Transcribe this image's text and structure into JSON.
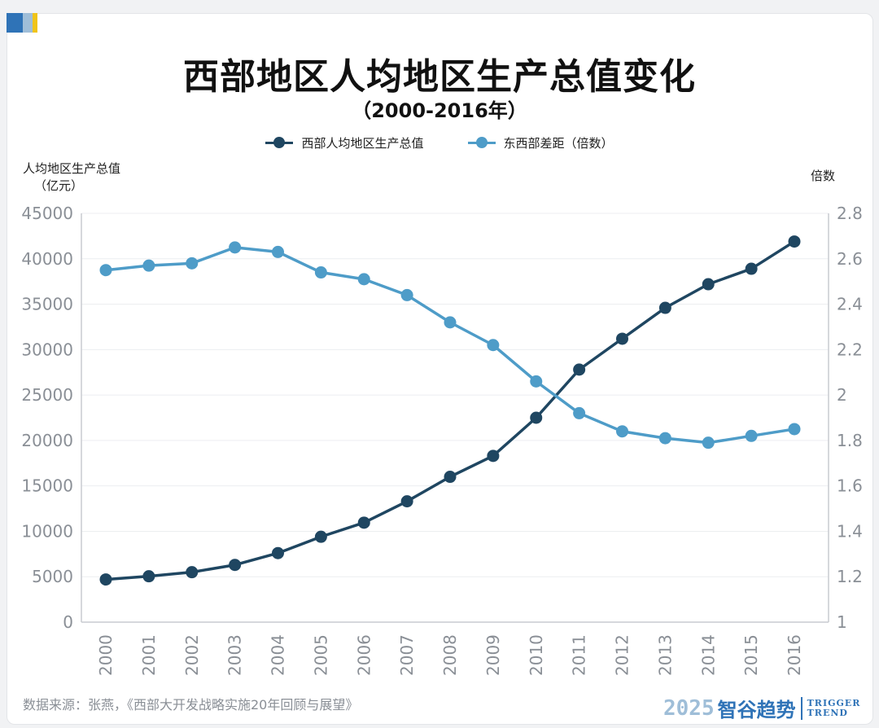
{
  "header": {
    "title": "西部地区人均地区生产总值变化",
    "subtitle": "（2000-2016年）"
  },
  "legend": {
    "items": [
      {
        "label": "西部人均地区生产总值",
        "color": "#1f4661"
      },
      {
        "label": "东西部差距（倍数）",
        "color": "#4e9cc8"
      }
    ]
  },
  "axes": {
    "left_label_line1": "人均地区生产总值",
    "left_label_line2": "（亿元）",
    "right_label": "倍数"
  },
  "chart_data": {
    "type": "line",
    "x": [
      "2000",
      "2001",
      "2002",
      "2003",
      "2004",
      "2005",
      "2006",
      "2007",
      "2008",
      "2009",
      "2010",
      "2011",
      "2012",
      "2013",
      "2014",
      "2015",
      "2016"
    ],
    "series": [
      {
        "name": "西部人均地区生产总值",
        "axis": "left",
        "color": "#1f4661",
        "values": [
          4700,
          5050,
          5500,
          6300,
          7600,
          9400,
          10950,
          13300,
          16000,
          18300,
          22500,
          27800,
          31200,
          34600,
          37200,
          38900,
          41900
        ]
      },
      {
        "name": "东西部差距（倍数）",
        "axis": "right",
        "color": "#4e9cc8",
        "values": [
          2.55,
          2.57,
          2.58,
          2.65,
          2.63,
          2.54,
          2.51,
          2.44,
          2.32,
          2.22,
          2.06,
          1.92,
          1.84,
          1.81,
          1.79,
          1.82,
          1.85
        ]
      }
    ],
    "y_left": {
      "ticks": [
        "0",
        "5000",
        "10000",
        "15000",
        "20000",
        "25000",
        "30000",
        "35000",
        "40000",
        "45000"
      ],
      "min": 0,
      "max": 45000
    },
    "y_right": {
      "ticks": [
        "1",
        "1.2",
        "1.4",
        "1.6",
        "1.8",
        "2",
        "2.2",
        "2.4",
        "2.6",
        "2.8"
      ],
      "min": 1,
      "max": 2.8
    },
    "grid": true,
    "legend_position": "top-center"
  },
  "footer": {
    "source": "数据来源：张燕，《西部大开发战略实施20年回顾与展望》",
    "brand_year": "2025",
    "brand_name": "智谷趋势",
    "brand_en_line1": "TRIGGER",
    "brand_en_line2": "TREND"
  },
  "colors": {
    "logo_dark": "#2f73b7",
    "logo_light": "#9fbed8",
    "logo_yellow": "#f0c419",
    "axis": "#c9ccd1",
    "grid": "#eceef0",
    "tick_text": "#8a8f96"
  }
}
